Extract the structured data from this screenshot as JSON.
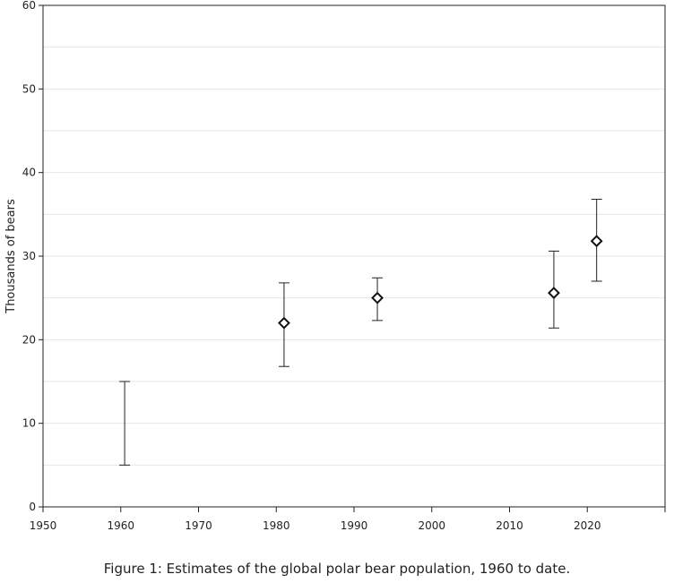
{
  "chart_data": {
    "type": "scatter",
    "title": "",
    "caption": "Figure 1: Estimates of the global polar bear population, 1960 to date.",
    "xlabel": "",
    "ylabel": "Thousands of bears",
    "xlim": [
      1950,
      2030
    ],
    "ylim": [
      0,
      60
    ],
    "xticks": [
      1950,
      1960,
      1970,
      1980,
      1990,
      2000,
      2010,
      2020
    ],
    "yticks": [
      0,
      10,
      20,
      30,
      40,
      50,
      60
    ],
    "grid": "horizontal",
    "points": [
      {
        "x": 1960.5,
        "y": null,
        "low": 5,
        "high": 15
      },
      {
        "x": 1981,
        "y": 22,
        "low": 16.8,
        "high": 26.8
      },
      {
        "x": 1993,
        "y": 25,
        "low": 22.3,
        "high": 27.4
      },
      {
        "x": 2015.7,
        "y": 25.6,
        "low": 21.4,
        "high": 30.6
      },
      {
        "x": 2021.2,
        "y": 31.8,
        "low": 27,
        "high": 36.8
      }
    ]
  }
}
